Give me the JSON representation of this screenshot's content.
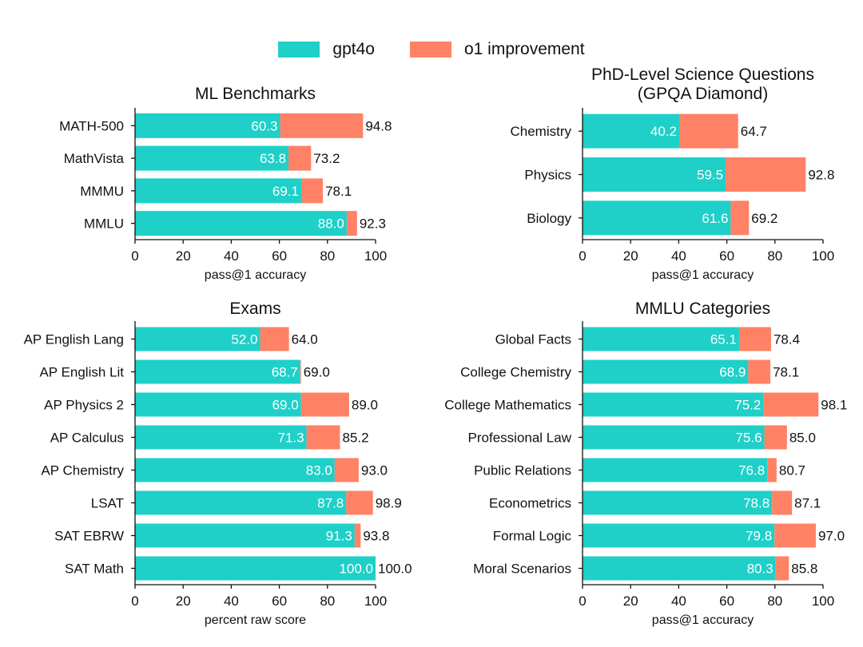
{
  "colors": {
    "gpt4o": "#1ED0C8",
    "improvement": "#FF8266",
    "axis": "#111111"
  },
  "legend": {
    "gpt4o_label": "gpt4o",
    "improvement_label": "o1 improvement"
  },
  "chart_data": [
    {
      "type": "bar",
      "title": "ML Benchmarks",
      "xlabel": "pass@1 accuracy",
      "xlim": [
        0,
        100
      ],
      "xticks": [
        0,
        20,
        40,
        60,
        80,
        100
      ],
      "categories": [
        "MATH-500",
        "MathVista",
        "MMMU",
        "MMLU"
      ],
      "series": [
        {
          "name": "gpt4o",
          "values": [
            60.3,
            63.8,
            69.1,
            88.0
          ]
        },
        {
          "name": "o1 improvement",
          "values": [
            94.8,
            73.2,
            78.1,
            92.3
          ]
        }
      ]
    },
    {
      "type": "bar",
      "title": "PhD-Level Science Questions\n(GPQA Diamond)",
      "xlabel": "pass@1 accuracy",
      "xlim": [
        0,
        100
      ],
      "xticks": [
        0,
        20,
        40,
        60,
        80,
        100
      ],
      "categories": [
        "Chemistry",
        "Physics",
        "Biology"
      ],
      "series": [
        {
          "name": "gpt4o",
          "values": [
            40.2,
            59.5,
            61.6
          ]
        },
        {
          "name": "o1 improvement",
          "values": [
            64.7,
            92.8,
            69.2
          ]
        }
      ]
    },
    {
      "type": "bar",
      "title": "Exams",
      "xlabel": "percent raw score",
      "xlim": [
        0,
        100
      ],
      "xticks": [
        0,
        20,
        40,
        60,
        80,
        100
      ],
      "categories": [
        "AP English Lang",
        "AP English Lit",
        "AP Physics 2",
        "AP Calculus",
        "AP Chemistry",
        "LSAT",
        "SAT EBRW",
        "SAT Math"
      ],
      "series": [
        {
          "name": "gpt4o",
          "values": [
            52.0,
            68.7,
            69.0,
            71.3,
            83.0,
            87.8,
            91.3,
            100.0
          ]
        },
        {
          "name": "o1 improvement",
          "values": [
            64.0,
            69.0,
            89.0,
            85.2,
            93.0,
            98.9,
            93.8,
            100.0
          ]
        }
      ]
    },
    {
      "type": "bar",
      "title": "MMLU Categories",
      "xlabel": "pass@1 accuracy",
      "xlim": [
        0,
        100
      ],
      "xticks": [
        0,
        20,
        40,
        60,
        80,
        100
      ],
      "categories": [
        "Global Facts",
        "College Chemistry",
        "College Mathematics",
        "Professional Law",
        "Public Relations",
        "Econometrics",
        "Formal Logic",
        "Moral Scenarios"
      ],
      "series": [
        {
          "name": "gpt4o",
          "values": [
            65.1,
            68.9,
            75.2,
            75.6,
            76.8,
            78.8,
            79.8,
            80.3
          ]
        },
        {
          "name": "o1 improvement",
          "values": [
            78.4,
            78.1,
            98.1,
            85.0,
            80.7,
            87.1,
            97.0,
            85.8
          ]
        }
      ]
    }
  ]
}
